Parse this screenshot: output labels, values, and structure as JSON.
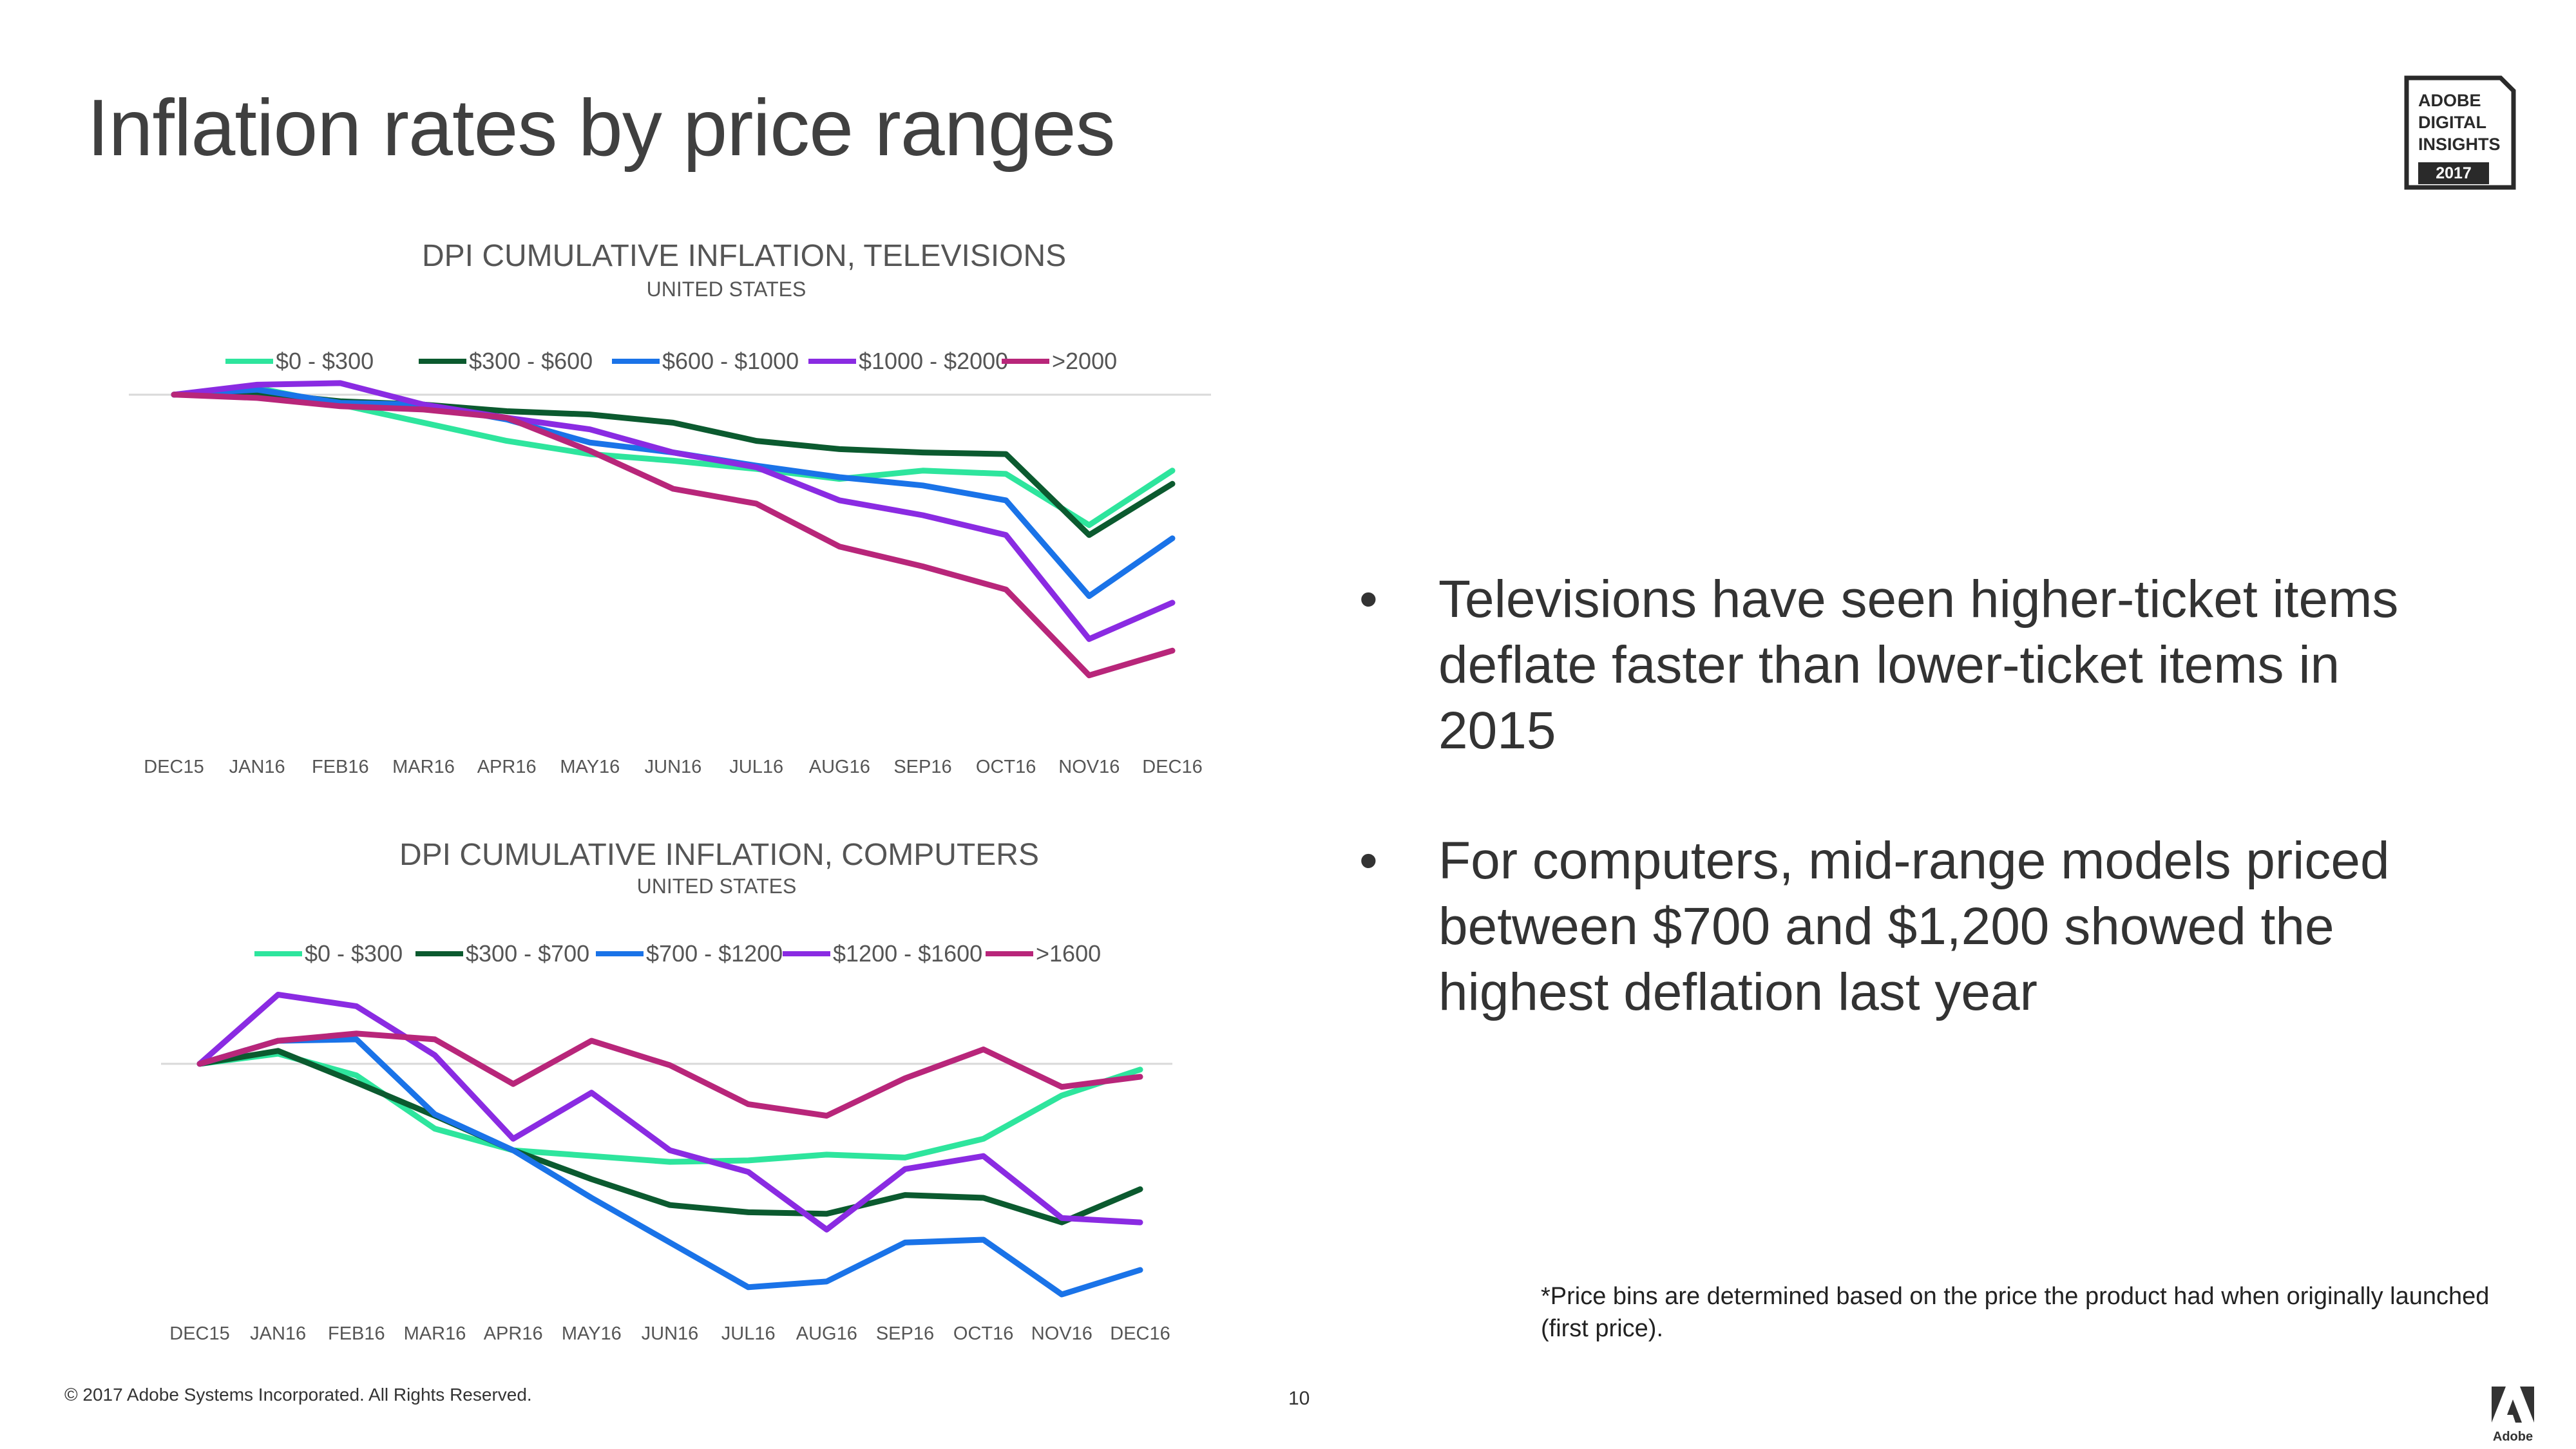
{
  "slide": {
    "title": "Inflation rates by price ranges",
    "badge": {
      "lines": [
        "ADOBE",
        "DIGITAL",
        "INSIGHTS"
      ],
      "year": "2017"
    },
    "bullets": [
      "Televisions have seen higher-ticket items deflate faster than lower-ticket items in 2015",
      "For computers, mid-range models priced between $700 and $1,200 showed the highest deflation last year"
    ],
    "bullet_symbol": "•",
    "footnote": "*Price bins are determined based on the price the product had when originally launched (first price).",
    "copyright": "© 2017 Adobe Systems Incorporated.  All Rights Reserved.",
    "page_number": "10",
    "logo_label": "Adobe"
  },
  "chart_data": [
    {
      "type": "line",
      "title": "DPI CUMULATIVE INFLATION, TELEVISIONS",
      "subtitle": "UNITED STATES",
      "categories": [
        "DEC15",
        "JAN16",
        "FEB16",
        "MAR16",
        "APR16",
        "MAY16",
        "JUN16",
        "JUL16",
        "AUG16",
        "SEP16",
        "OCT16",
        "NOV16",
        "DEC16"
      ],
      "ylim": [
        -0.19,
        0.005
      ],
      "baseline": 0,
      "grid": false,
      "legend": "top",
      "series": [
        {
          "name": "$0 - $300",
          "color": "#2ee59d",
          "values": [
            0.0,
            0.004,
            -0.006,
            -0.017,
            -0.028,
            -0.036,
            -0.04,
            -0.045,
            -0.051,
            -0.046,
            -0.048,
            -0.079,
            -0.046
          ]
        },
        {
          "name": "$300 - $600",
          "color": "#0b5a2f",
          "values": [
            0.0,
            0.001,
            -0.004,
            -0.006,
            -0.01,
            -0.012,
            -0.017,
            -0.028,
            -0.033,
            -0.035,
            -0.036,
            -0.085,
            -0.054
          ]
        },
        {
          "name": "$600 - $1000",
          "color": "#1a73e8",
          "values": [
            0.0,
            0.003,
            -0.005,
            -0.006,
            -0.015,
            -0.029,
            -0.035,
            -0.043,
            -0.05,
            -0.055,
            -0.064,
            -0.122,
            -0.087
          ]
        },
        {
          "name": "$1000 - $2000",
          "color": "#8a2be2",
          "values": [
            0.0,
            0.006,
            0.007,
            -0.006,
            -0.014,
            -0.021,
            -0.035,
            -0.044,
            -0.064,
            -0.073,
            -0.085,
            -0.148,
            -0.126
          ]
        },
        {
          "name": ">2000",
          "color": "#b8267a",
          "values": [
            0.0,
            -0.002,
            -0.007,
            -0.009,
            -0.014,
            -0.034,
            -0.057,
            -0.066,
            -0.092,
            -0.104,
            -0.118,
            -0.17,
            -0.155
          ]
        }
      ]
    },
    {
      "type": "line",
      "title": "DPI CUMULATIVE INFLATION, COMPUTERS",
      "subtitle": "UNITED STATES",
      "categories": [
        "DEC15",
        "JAN16",
        "FEB16",
        "MAR16",
        "APR16",
        "MAY16",
        "JUN16",
        "JUL16",
        "AUG16",
        "SEP16",
        "OCT16",
        "NOV16",
        "DEC16"
      ],
      "ylim": [
        -0.16,
        0.05
      ],
      "baseline": 0,
      "grid": false,
      "legend": "top",
      "series": [
        {
          "name": "$0 - $300",
          "color": "#2ee59d",
          "values": [
            0.0,
            0.007,
            -0.008,
            -0.045,
            -0.06,
            -0.064,
            -0.068,
            -0.067,
            -0.063,
            -0.065,
            -0.052,
            -0.022,
            -0.004
          ]
        },
        {
          "name": "$300 - $700",
          "color": "#0b5a2f",
          "values": [
            0.0,
            0.009,
            -0.013,
            -0.036,
            -0.06,
            -0.08,
            -0.098,
            -0.103,
            -0.104,
            -0.091,
            -0.093,
            -0.11,
            -0.087
          ]
        },
        {
          "name": "$700 - $1200",
          "color": "#1a73e8",
          "values": [
            0.0,
            0.016,
            0.017,
            -0.035,
            -0.06,
            -0.093,
            -0.124,
            -0.155,
            -0.151,
            -0.124,
            -0.122,
            -0.16,
            -0.143
          ]
        },
        {
          "name": "$1200 - $1600",
          "color": "#8a2be2",
          "values": [
            0.0,
            0.048,
            0.04,
            0.006,
            -0.052,
            -0.02,
            -0.06,
            -0.075,
            -0.115,
            -0.073,
            -0.064,
            -0.107,
            -0.11
          ]
        },
        {
          "name": ">1600",
          "color": "#b8267a",
          "values": [
            0.0,
            0.016,
            0.021,
            0.017,
            -0.014,
            0.016,
            -0.001,
            -0.028,
            -0.036,
            -0.01,
            0.01,
            -0.016,
            -0.009
          ]
        }
      ]
    }
  ]
}
